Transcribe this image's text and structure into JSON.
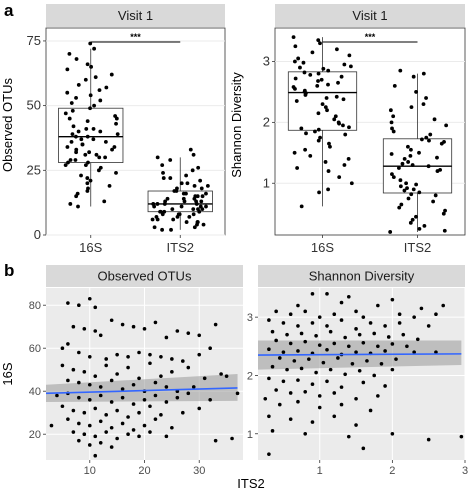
{
  "figure": {
    "panel_labels": [
      "a",
      "b"
    ],
    "b_shared_xlabel": "ITS2"
  },
  "chart_data": [
    {
      "panel": "a",
      "type": "box",
      "facet_title": "Visit 1",
      "categories": [
        "16S",
        "ITS2"
      ],
      "ylabel": "Observed OTUs",
      "ylim": [
        0,
        80
      ],
      "yticks": [
        0,
        25,
        50,
        75
      ],
      "significance": "***",
      "boxes": [
        {
          "category": "16S",
          "q1": 28,
          "median": 38,
          "q3": 49,
          "whisker_low": 11,
          "whisker_high": 72
        },
        {
          "category": "ITS2",
          "q1": 9,
          "median": 12,
          "q3": 17,
          "whisker_low": 2,
          "whisker_high": 30
        }
      ],
      "points": [
        {
          "category": "16S",
          "values": [
            74,
            72,
            70,
            68,
            66,
            65,
            64,
            62,
            61,
            60,
            58,
            57,
            56,
            55,
            54,
            53,
            52,
            51,
            50,
            49,
            48,
            47,
            46,
            45,
            45,
            44,
            43,
            42,
            41,
            41,
            40,
            40,
            39,
            39,
            38,
            38,
            37,
            37,
            36,
            36,
            35,
            35,
            34,
            34,
            33,
            33,
            32,
            32,
            31,
            31,
            30,
            30,
            29,
            29,
            28,
            28,
            27,
            27,
            26,
            25,
            24,
            23,
            22,
            21,
            20,
            19,
            18,
            17,
            16,
            15,
            13,
            12,
            11
          ]
        },
        {
          "category": "ITS2",
          "values": [
            33,
            31,
            30,
            29,
            27,
            26,
            25,
            24,
            23,
            22,
            22,
            21,
            20,
            20,
            19,
            19,
            18,
            18,
            17,
            17,
            16,
            16,
            16,
            15,
            15,
            15,
            14,
            14,
            14,
            13,
            13,
            13,
            13,
            12,
            12,
            12,
            12,
            11,
            11,
            11,
            11,
            10,
            10,
            10,
            10,
            9,
            9,
            9,
            9,
            8,
            8,
            8,
            8,
            7,
            7,
            7,
            6,
            6,
            6,
            5,
            5,
            5,
            4,
            4,
            3,
            3,
            2,
            2
          ]
        }
      ]
    },
    {
      "panel": "a",
      "type": "box",
      "facet_title": "Visit 1",
      "categories": [
        "16S",
        "ITS2"
      ],
      "ylabel": "Shannon Diversity",
      "ylim": [
        0.15,
        3.55
      ],
      "yticks": [
        1,
        2,
        3
      ],
      "significance": "***",
      "boxes": [
        {
          "category": "16S",
          "q1": 1.87,
          "median": 2.49,
          "q3": 2.83,
          "whisker_low": 0.62,
          "whisker_high": 3.4
        },
        {
          "category": "ITS2",
          "q1": 0.84,
          "median": 1.28,
          "q3": 1.73,
          "whisker_low": 0.2,
          "whisker_high": 2.8
        }
      ],
      "points": [
        {
          "category": "16S",
          "values": [
            3.4,
            3.35,
            3.3,
            3.25,
            3.2,
            3.15,
            3.1,
            3.05,
            3.0,
            2.98,
            2.95,
            2.92,
            2.9,
            2.88,
            2.85,
            2.82,
            2.8,
            2.78,
            2.75,
            2.72,
            2.7,
            2.68,
            2.65,
            2.62,
            2.6,
            2.58,
            2.55,
            2.52,
            2.5,
            2.48,
            2.45,
            2.42,
            2.4,
            2.38,
            2.35,
            2.3,
            2.25,
            2.2,
            2.15,
            2.1,
            2.05,
            2.0,
            1.98,
            1.95,
            1.92,
            1.9,
            1.88,
            1.85,
            1.82,
            1.8,
            1.75,
            1.7,
            1.65,
            1.6,
            1.55,
            1.5,
            1.45,
            1.4,
            1.35,
            1.3,
            1.25,
            1.2,
            1.1,
            1.0,
            0.9,
            0.85,
            0.62
          ]
        },
        {
          "category": "ITS2",
          "values": [
            2.85,
            2.8,
            2.75,
            2.6,
            2.5,
            2.4,
            2.3,
            2.25,
            2.2,
            2.1,
            2.05,
            2.0,
            1.95,
            1.9,
            1.85,
            1.8,
            1.75,
            1.72,
            1.7,
            1.68,
            1.65,
            1.6,
            1.55,
            1.5,
            1.48,
            1.45,
            1.42,
            1.4,
            1.35,
            1.32,
            1.3,
            1.28,
            1.25,
            1.22,
            1.2,
            1.15,
            1.1,
            1.05,
            1.0,
            0.98,
            0.95,
            0.92,
            0.9,
            0.88,
            0.85,
            0.82,
            0.8,
            0.75,
            0.7,
            0.65,
            0.6,
            0.55,
            0.5,
            0.45,
            0.4,
            0.35,
            0.3,
            0.25,
            0.22,
            0.2
          ]
        }
      ]
    },
    {
      "panel": "b",
      "type": "scatter",
      "facet_title": "Observed OTUs",
      "xlabel": "ITS2",
      "ylabel": "16S",
      "xlim": [
        2,
        38
      ],
      "ylim": [
        8,
        88
      ],
      "xticks": [
        10,
        20,
        30
      ],
      "yticks": [
        20,
        40,
        60,
        80
      ],
      "fit": {
        "x": [
          2,
          37
        ],
        "y": [
          39,
          41.5
        ],
        "band_low": [
          35,
          35.5
        ],
        "band_high": [
          43,
          48
        ]
      },
      "points": [
        [
          6,
          81
        ],
        [
          8,
          80
        ],
        [
          10,
          83
        ],
        [
          11,
          79
        ],
        [
          5,
          60
        ],
        [
          7,
          70
        ],
        [
          9,
          69
        ],
        [
          11,
          68
        ],
        [
          12,
          66
        ],
        [
          14,
          73
        ],
        [
          16,
          71
        ],
        [
          18,
          70
        ],
        [
          20,
          69
        ],
        [
          22,
          72
        ],
        [
          24,
          65
        ],
        [
          26,
          68
        ],
        [
          28,
          67
        ],
        [
          30,
          66
        ],
        [
          33,
          71
        ],
        [
          6,
          62
        ],
        [
          8,
          58
        ],
        [
          10,
          56
        ],
        [
          13,
          55
        ],
        [
          15,
          57
        ],
        [
          17,
          56
        ],
        [
          19,
          58
        ],
        [
          21,
          57
        ],
        [
          23,
          56
        ],
        [
          25,
          55
        ],
        [
          27,
          54
        ],
        [
          30,
          57
        ],
        [
          32,
          60
        ],
        [
          5,
          52
        ],
        [
          7,
          50
        ],
        [
          9,
          49
        ],
        [
          11,
          47
        ],
        [
          13,
          52
        ],
        [
          15,
          48
        ],
        [
          17,
          51
        ],
        [
          19,
          46
        ],
        [
          21,
          53
        ],
        [
          23,
          47
        ],
        [
          25,
          49
        ],
        [
          28,
          51
        ],
        [
          6,
          45
        ],
        [
          8,
          44
        ],
        [
          10,
          43
        ],
        [
          12,
          42
        ],
        [
          14,
          45
        ],
        [
          16,
          41
        ],
        [
          18,
          43
        ],
        [
          20,
          40
        ],
        [
          22,
          44
        ],
        [
          24,
          42
        ],
        [
          26,
          40
        ],
        [
          29,
          42
        ],
        [
          31,
          46
        ],
        [
          34,
          48
        ],
        [
          35,
          47
        ],
        [
          4,
          38
        ],
        [
          6,
          39
        ],
        [
          8,
          37
        ],
        [
          10,
          36
        ],
        [
          12,
          38
        ],
        [
          14,
          35
        ],
        [
          16,
          37
        ],
        [
          18,
          34
        ],
        [
          20,
          36
        ],
        [
          22,
          38
        ],
        [
          24,
          35
        ],
        [
          26,
          37
        ],
        [
          28,
          39
        ],
        [
          32,
          36
        ],
        [
          5,
          33
        ],
        [
          7,
          31
        ],
        [
          9,
          30
        ],
        [
          11,
          32
        ],
        [
          13,
          29
        ],
        [
          15,
          31
        ],
        [
          17,
          28
        ],
        [
          19,
          30
        ],
        [
          21,
          33
        ],
        [
          23,
          29
        ],
        [
          27,
          30
        ],
        [
          30,
          32
        ],
        [
          6,
          27
        ],
        [
          8,
          25
        ],
        [
          10,
          24
        ],
        [
          12,
          26
        ],
        [
          14,
          23
        ],
        [
          16,
          25
        ],
        [
          18,
          22
        ],
        [
          20,
          24
        ],
        [
          22,
          27
        ],
        [
          25,
          23
        ],
        [
          7,
          21
        ],
        [
          9,
          20
        ],
        [
          11,
          19
        ],
        [
          13,
          21
        ],
        [
          15,
          18
        ],
        [
          17,
          20
        ],
        [
          19,
          19
        ],
        [
          21,
          21
        ],
        [
          24,
          19
        ],
        [
          3,
          24
        ],
        [
          8,
          17
        ],
        [
          10,
          15
        ],
        [
          12,
          16
        ],
        [
          14,
          14
        ],
        [
          11,
          10
        ],
        [
          33,
          17
        ],
        [
          36,
          18
        ],
        [
          37,
          39
        ]
      ]
    },
    {
      "panel": "b",
      "type": "scatter",
      "facet_title": "Shannon Diversity",
      "xlabel": "ITS2",
      "ylabel": "16S",
      "xlim": [
        0.15,
        3.0
      ],
      "ylim": [
        0.55,
        3.5
      ],
      "xticks": [
        1,
        2,
        3
      ],
      "yticks": [
        1,
        2,
        3
      ],
      "fit": {
        "x": [
          0.15,
          2.95
        ],
        "y": [
          2.35,
          2.37
        ],
        "band_low": [
          2.1,
          2.18
        ],
        "band_high": [
          2.6,
          2.6
        ]
      },
      "points": [
        [
          0.9,
          3.4
        ],
        [
          1.1,
          3.4
        ],
        [
          1.4,
          3.35
        ],
        [
          2.0,
          3.3
        ],
        [
          0.7,
          3.2
        ],
        [
          1.3,
          3.25
        ],
        [
          1.8,
          3.2
        ],
        [
          2.4,
          3.15
        ],
        [
          2.7,
          3.2
        ],
        [
          0.4,
          3.1
        ],
        [
          0.6,
          3.05
        ],
        [
          0.8,
          3.1
        ],
        [
          1.0,
          3.0
        ],
        [
          1.2,
          3.05
        ],
        [
          1.5,
          3.1
        ],
        [
          1.6,
          3.0
        ],
        [
          2.1,
          3.05
        ],
        [
          2.3,
          3.0
        ],
        [
          2.6,
          3.05
        ],
        [
          0.3,
          2.95
        ],
        [
          0.5,
          2.9
        ],
        [
          0.7,
          2.85
        ],
        [
          0.9,
          2.9
        ],
        [
          1.1,
          2.85
        ],
        [
          1.3,
          2.95
        ],
        [
          1.5,
          2.8
        ],
        [
          1.7,
          2.9
        ],
        [
          1.9,
          2.85
        ],
        [
          2.1,
          2.9
        ],
        [
          2.5,
          2.85
        ],
        [
          0.35,
          2.75
        ],
        [
          0.55,
          2.7
        ],
        [
          0.75,
          2.72
        ],
        [
          0.95,
          2.68
        ],
        [
          1.15,
          2.75
        ],
        [
          1.35,
          2.65
        ],
        [
          1.55,
          2.7
        ],
        [
          1.75,
          2.72
        ],
        [
          1.95,
          2.66
        ],
        [
          2.15,
          2.7
        ],
        [
          2.35,
          2.62
        ],
        [
          0.4,
          2.6
        ],
        [
          0.6,
          2.55
        ],
        [
          0.8,
          2.58
        ],
        [
          1.0,
          2.52
        ],
        [
          1.2,
          2.55
        ],
        [
          1.4,
          2.5
        ],
        [
          1.6,
          2.56
        ],
        [
          1.8,
          2.5
        ],
        [
          2.0,
          2.54
        ],
        [
          2.2,
          2.5
        ],
        [
          0.3,
          2.45
        ],
        [
          0.5,
          2.4
        ],
        [
          0.7,
          2.42
        ],
        [
          0.9,
          2.38
        ],
        [
          1.1,
          2.44
        ],
        [
          1.3,
          2.36
        ],
        [
          1.5,
          2.4
        ],
        [
          1.7,
          2.38
        ],
        [
          1.9,
          2.42
        ],
        [
          2.3,
          2.4
        ],
        [
          2.6,
          2.4
        ],
        [
          0.45,
          2.3
        ],
        [
          0.65,
          2.25
        ],
        [
          0.85,
          2.28
        ],
        [
          1.05,
          2.22
        ],
        [
          1.25,
          2.3
        ],
        [
          1.45,
          2.2
        ],
        [
          1.65,
          2.25
        ],
        [
          1.85,
          2.2
        ],
        [
          2.05,
          2.28
        ],
        [
          0.35,
          2.15
        ],
        [
          0.55,
          2.1
        ],
        [
          0.75,
          2.12
        ],
        [
          0.95,
          2.05
        ],
        [
          1.15,
          2.1
        ],
        [
          1.35,
          2.02
        ],
        [
          1.55,
          2.08
        ],
        [
          1.75,
          2.0
        ],
        [
          2.0,
          2.1
        ],
        [
          0.3,
          1.95
        ],
        [
          0.5,
          1.9
        ],
        [
          0.7,
          1.92
        ],
        [
          0.9,
          1.85
        ],
        [
          1.1,
          1.9
        ],
        [
          1.3,
          1.8
        ],
        [
          1.6,
          1.88
        ],
        [
          1.9,
          1.82
        ],
        [
          0.4,
          1.75
        ],
        [
          0.6,
          1.7
        ],
        [
          0.8,
          1.72
        ],
        [
          1.0,
          1.65
        ],
        [
          1.2,
          1.7
        ],
        [
          1.5,
          1.6
        ],
        [
          1.8,
          1.65
        ],
        [
          0.25,
          1.6
        ],
        [
          0.45,
          1.5
        ],
        [
          0.7,
          1.55
        ],
        [
          1.0,
          1.45
        ],
        [
          1.3,
          1.5
        ],
        [
          1.7,
          1.4
        ],
        [
          0.3,
          1.3
        ],
        [
          0.6,
          1.25
        ],
        [
          0.9,
          1.2
        ],
        [
          1.2,
          1.3
        ],
        [
          1.5,
          1.15
        ],
        [
          0.35,
          1.05
        ],
        [
          0.8,
          1.0
        ],
        [
          1.4,
          0.95
        ],
        [
          2.0,
          1.0
        ],
        [
          2.95,
          0.95
        ],
        [
          0.3,
          0.65
        ],
        [
          1.6,
          0.75
        ],
        [
          2.5,
          0.9
        ]
      ]
    }
  ]
}
